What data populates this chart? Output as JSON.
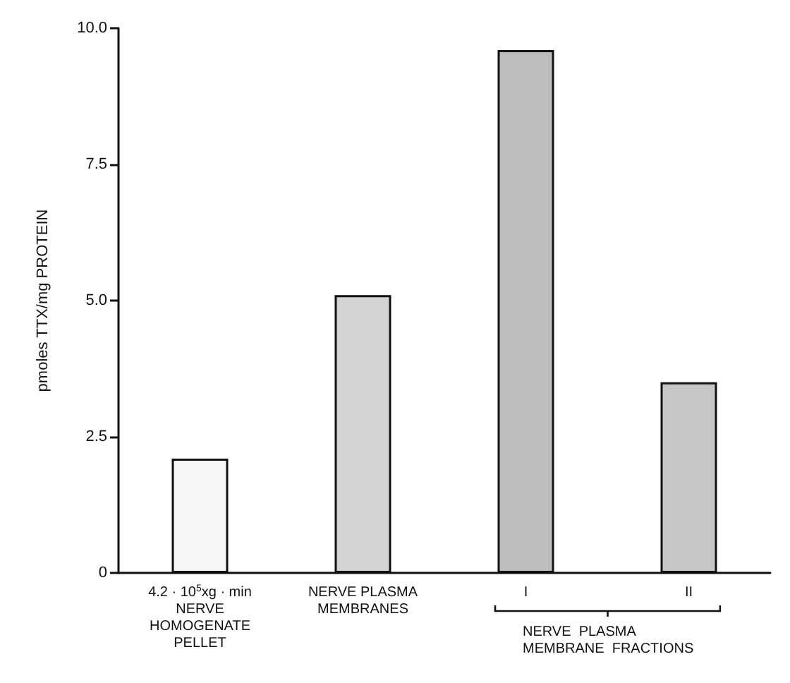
{
  "chart_data": {
    "type": "bar",
    "ylabel": "pmoles TTX/mg PROTEIN",
    "categories": [
      "4.2 · 10$^{5}$xg · min\nNERVE\nHOMOGENATE\nPELLET",
      "NERVE PLASMA\nMEMBRANES",
      "I",
      "II"
    ],
    "values": [
      2.1,
      5.1,
      9.6,
      3.5
    ],
    "colors": [
      "#f6f6f6",
      "#d4d4d4",
      "#bdbdbd",
      "#c6c6c6"
    ],
    "ylim": [
      0,
      10
    ],
    "yticks": [
      0,
      2.5,
      {
        "value": 5,
        "label": "5.0"
      },
      7.5,
      {
        "value": 10,
        "label": "10.0"
      }
    ],
    "grid": false,
    "annotations": [
      "NERVE  PLASMA\nMEMBRANE  FRACTIONS"
    ]
  }
}
